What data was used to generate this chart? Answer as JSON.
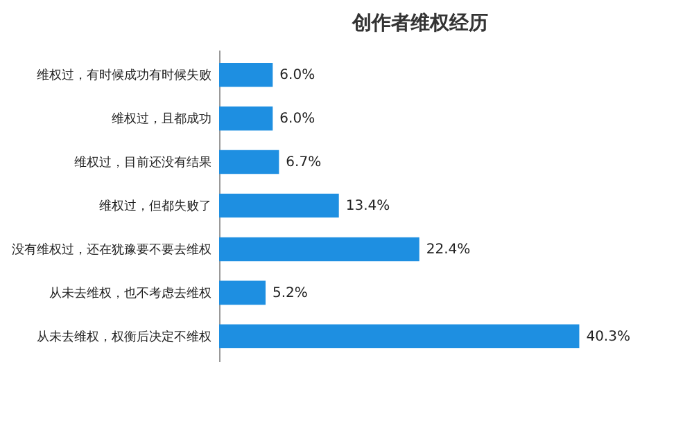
{
  "chart_data": {
    "type": "bar",
    "orientation": "horizontal",
    "title": "创作者维权经历",
    "categories": [
      "维权过，有时候成功有时候失败",
      "维权过，且都成功",
      "维权过，目前还没有结果",
      "维权过，但都失败了",
      "没有维权过，还在犹豫要不要去维权",
      "从未去维权，也不考虑去维权",
      "从未去维权，权衡后决定不维权"
    ],
    "values": [
      6.0,
      6.0,
      6.7,
      13.4,
      22.4,
      5.2,
      40.3
    ],
    "value_labels": [
      "6.0%",
      "6.0%",
      "6.7%",
      "13.4%",
      "22.4%",
      "5.2%",
      "40.3%"
    ],
    "color": "#1e8fe1"
  }
}
